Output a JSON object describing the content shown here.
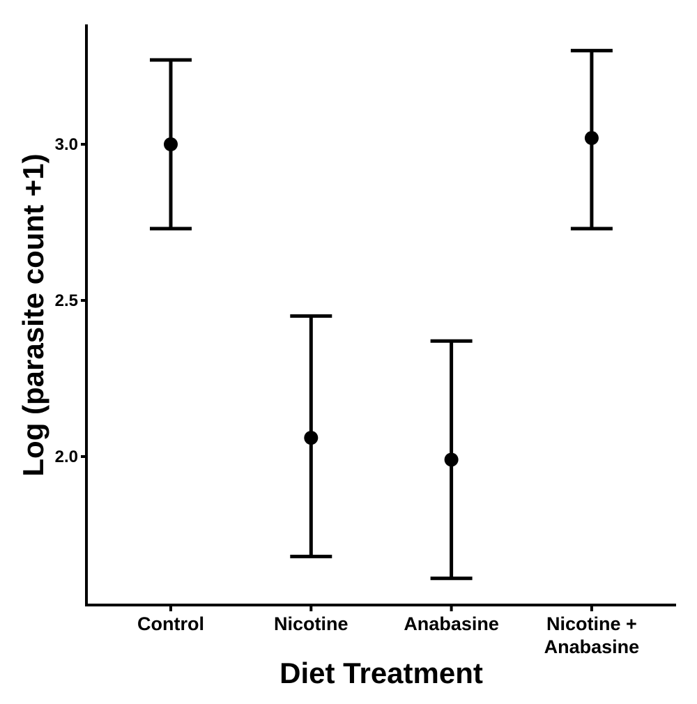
{
  "chart_data": {
    "type": "errorbar",
    "title": "",
    "xlabel": "Diet Treatment",
    "ylabel": "Log (parasite count +1)",
    "categories": [
      {
        "lines": [
          "Control"
        ]
      },
      {
        "lines": [
          "Nicotine"
        ]
      },
      {
        "lines": [
          "Anabasine"
        ]
      },
      {
        "lines": [
          "Nicotine +",
          "Anabasine"
        ]
      }
    ],
    "series": [
      {
        "means": [
          3.0,
          2.06,
          1.99,
          3.02
        ],
        "upper": [
          3.27,
          2.45,
          2.37,
          3.3
        ],
        "lower": [
          2.73,
          1.68,
          1.61,
          2.73
        ]
      }
    ],
    "yticks": [
      2.0,
      2.5,
      3.0
    ],
    "ytick_labels": [
      "2.0",
      "2.5",
      "3.0"
    ],
    "ylim": [
      1.525,
      3.384
    ],
    "grid": false,
    "legend": "none",
    "color": "#000000"
  }
}
